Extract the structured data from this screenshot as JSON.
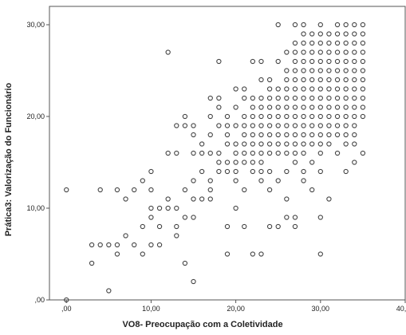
{
  "chart_data": {
    "type": "scatter",
    "title": "",
    "xlabel": "VO8- Preocupação com a Coletividade",
    "ylabel": "Prática3: Valorização do Funcionário",
    "xlim": [
      -2,
      40
    ],
    "ylim": [
      0,
      32
    ],
    "x_ticks": [
      0,
      10,
      20,
      30,
      40
    ],
    "x_tick_labels": [
      ",00",
      "10,00",
      "20,00",
      "30,00",
      "40,00"
    ],
    "y_ticks": [
      0,
      10,
      20,
      30
    ],
    "y_tick_labels": [
      ",00",
      "10,00",
      "20,00",
      "30,00"
    ],
    "grid": false,
    "legend": "none",
    "marker": "open-circle",
    "colors": {
      "marker_stroke": "#444444",
      "plot_background": "#ffffff",
      "axis": "#555555"
    },
    "points": [
      [
        0,
        0
      ],
      [
        0,
        12
      ],
      [
        3,
        6
      ],
      [
        3,
        4
      ],
      [
        4,
        6
      ],
      [
        4,
        12
      ],
      [
        5,
        1
      ],
      [
        5,
        6
      ],
      [
        6,
        5
      ],
      [
        6,
        6
      ],
      [
        6,
        12
      ],
      [
        7,
        11
      ],
      [
        7,
        7
      ],
      [
        8,
        6
      ],
      [
        8,
        12
      ],
      [
        9,
        5
      ],
      [
        9,
        8
      ],
      [
        9,
        13
      ],
      [
        10,
        6
      ],
      [
        10,
        10
      ],
      [
        10,
        9
      ],
      [
        10,
        12
      ],
      [
        10,
        14
      ],
      [
        11,
        10
      ],
      [
        11,
        8
      ],
      [
        11,
        6
      ],
      [
        12,
        11
      ],
      [
        12,
        10
      ],
      [
        12,
        27
      ],
      [
        12,
        16
      ],
      [
        13,
        7
      ],
      [
        13,
        8
      ],
      [
        13,
        10
      ],
      [
        13,
        16
      ],
      [
        13,
        19
      ],
      [
        14,
        9
      ],
      [
        14,
        4
      ],
      [
        14,
        12
      ],
      [
        14,
        19
      ],
      [
        14,
        20
      ],
      [
        15,
        2
      ],
      [
        15,
        9
      ],
      [
        15,
        11
      ],
      [
        15,
        13
      ],
      [
        15,
        16
      ],
      [
        15,
        18
      ],
      [
        15,
        19
      ],
      [
        16,
        11
      ],
      [
        16,
        14
      ],
      [
        16,
        16
      ],
      [
        16,
        17
      ],
      [
        17,
        11
      ],
      [
        17,
        12
      ],
      [
        17,
        13
      ],
      [
        17,
        16
      ],
      [
        17,
        18
      ],
      [
        17,
        20
      ],
      [
        17,
        22
      ],
      [
        18,
        14
      ],
      [
        18,
        15
      ],
      [
        18,
        16
      ],
      [
        18,
        19
      ],
      [
        18,
        21
      ],
      [
        18,
        22
      ],
      [
        18,
        26
      ],
      [
        19,
        5
      ],
      [
        19,
        8
      ],
      [
        19,
        14
      ],
      [
        19,
        15
      ],
      [
        19,
        17
      ],
      [
        19,
        18
      ],
      [
        19,
        19
      ],
      [
        19,
        20
      ],
      [
        20,
        10
      ],
      [
        20,
        13
      ],
      [
        20,
        14
      ],
      [
        20,
        15
      ],
      [
        20,
        16
      ],
      [
        20,
        17
      ],
      [
        20,
        19
      ],
      [
        20,
        21
      ],
      [
        20,
        23
      ],
      [
        21,
        8
      ],
      [
        21,
        12
      ],
      [
        21,
        15
      ],
      [
        21,
        16
      ],
      [
        21,
        17
      ],
      [
        21,
        18
      ],
      [
        21,
        19
      ],
      [
        21,
        20
      ],
      [
        21,
        22
      ],
      [
        21,
        23
      ],
      [
        22,
        5
      ],
      [
        22,
        14
      ],
      [
        22,
        15
      ],
      [
        22,
        16
      ],
      [
        22,
        17
      ],
      [
        22,
        18
      ],
      [
        22,
        19
      ],
      [
        22,
        20
      ],
      [
        22,
        21
      ],
      [
        22,
        22
      ],
      [
        22,
        26
      ],
      [
        23,
        5
      ],
      [
        23,
        13
      ],
      [
        23,
        14
      ],
      [
        23,
        15
      ],
      [
        23,
        16
      ],
      [
        23,
        17
      ],
      [
        23,
        18
      ],
      [
        23,
        19
      ],
      [
        23,
        20
      ],
      [
        23,
        21
      ],
      [
        23,
        22
      ],
      [
        23,
        24
      ],
      [
        23,
        26
      ],
      [
        24,
        8
      ],
      [
        24,
        12
      ],
      [
        24,
        14
      ],
      [
        24,
        16
      ],
      [
        24,
        17
      ],
      [
        24,
        18
      ],
      [
        24,
        19
      ],
      [
        24,
        20
      ],
      [
        24,
        21
      ],
      [
        24,
        22
      ],
      [
        24,
        23
      ],
      [
        24,
        24
      ],
      [
        25,
        8
      ],
      [
        25,
        13
      ],
      [
        25,
        16
      ],
      [
        25,
        17
      ],
      [
        25,
        18
      ],
      [
        25,
        19
      ],
      [
        25,
        20
      ],
      [
        25,
        21
      ],
      [
        25,
        22
      ],
      [
        25,
        23
      ],
      [
        25,
        26
      ],
      [
        25,
        30
      ],
      [
        26,
        9
      ],
      [
        26,
        11
      ],
      [
        26,
        14
      ],
      [
        26,
        16
      ],
      [
        26,
        17
      ],
      [
        26,
        18
      ],
      [
        26,
        19
      ],
      [
        26,
        20
      ],
      [
        26,
        21
      ],
      [
        26,
        22
      ],
      [
        26,
        23
      ],
      [
        26,
        24
      ],
      [
        26,
        25
      ],
      [
        26,
        27
      ],
      [
        27,
        8
      ],
      [
        27,
        9
      ],
      [
        27,
        15
      ],
      [
        27,
        16
      ],
      [
        27,
        17
      ],
      [
        27,
        18
      ],
      [
        27,
        19
      ],
      [
        27,
        20
      ],
      [
        27,
        21
      ],
      [
        27,
        22
      ],
      [
        27,
        23
      ],
      [
        27,
        24
      ],
      [
        27,
        25
      ],
      [
        27,
        26
      ],
      [
        27,
        27
      ],
      [
        27,
        28
      ],
      [
        27,
        30
      ],
      [
        28,
        13
      ],
      [
        28,
        14
      ],
      [
        28,
        16
      ],
      [
        28,
        17
      ],
      [
        28,
        18
      ],
      [
        28,
        19
      ],
      [
        28,
        20
      ],
      [
        28,
        21
      ],
      [
        28,
        22
      ],
      [
        28,
        23
      ],
      [
        28,
        24
      ],
      [
        28,
        25
      ],
      [
        28,
        26
      ],
      [
        28,
        27
      ],
      [
        28,
        28
      ],
      [
        28,
        29
      ],
      [
        28,
        30
      ],
      [
        29,
        12
      ],
      [
        29,
        15
      ],
      [
        29,
        17
      ],
      [
        29,
        18
      ],
      [
        29,
        19
      ],
      [
        29,
        20
      ],
      [
        29,
        21
      ],
      [
        29,
        22
      ],
      [
        29,
        23
      ],
      [
        29,
        24
      ],
      [
        29,
        25
      ],
      [
        29,
        26
      ],
      [
        29,
        27
      ],
      [
        29,
        28
      ],
      [
        29,
        29
      ],
      [
        30,
        5
      ],
      [
        30,
        9
      ],
      [
        30,
        14
      ],
      [
        30,
        16
      ],
      [
        30,
        17
      ],
      [
        30,
        18
      ],
      [
        30,
        19
      ],
      [
        30,
        20
      ],
      [
        30,
        21
      ],
      [
        30,
        22
      ],
      [
        30,
        23
      ],
      [
        30,
        24
      ],
      [
        30,
        25
      ],
      [
        30,
        26
      ],
      [
        30,
        27
      ],
      [
        30,
        28
      ],
      [
        30,
        29
      ],
      [
        30,
        30
      ],
      [
        31,
        11
      ],
      [
        31,
        17
      ],
      [
        31,
        18
      ],
      [
        31,
        19
      ],
      [
        31,
        20
      ],
      [
        31,
        21
      ],
      [
        31,
        22
      ],
      [
        31,
        23
      ],
      [
        31,
        24
      ],
      [
        31,
        25
      ],
      [
        31,
        26
      ],
      [
        31,
        27
      ],
      [
        31,
        28
      ],
      [
        31,
        29
      ],
      [
        32,
        16
      ],
      [
        32,
        18
      ],
      [
        32,
        19
      ],
      [
        32,
        20
      ],
      [
        32,
        21
      ],
      [
        32,
        22
      ],
      [
        32,
        23
      ],
      [
        32,
        24
      ],
      [
        32,
        25
      ],
      [
        32,
        26
      ],
      [
        32,
        27
      ],
      [
        32,
        28
      ],
      [
        32,
        29
      ],
      [
        32,
        30
      ],
      [
        33,
        14
      ],
      [
        33,
        17
      ],
      [
        33,
        18
      ],
      [
        33,
        19
      ],
      [
        33,
        20
      ],
      [
        33,
        21
      ],
      [
        33,
        22
      ],
      [
        33,
        23
      ],
      [
        33,
        24
      ],
      [
        33,
        25
      ],
      [
        33,
        26
      ],
      [
        33,
        27
      ],
      [
        33,
        28
      ],
      [
        33,
        29
      ],
      [
        33,
        30
      ],
      [
        34,
        15
      ],
      [
        34,
        17
      ],
      [
        34,
        18
      ],
      [
        34,
        19
      ],
      [
        34,
        20
      ],
      [
        34,
        21
      ],
      [
        34,
        22
      ],
      [
        34,
        23
      ],
      [
        34,
        24
      ],
      [
        34,
        25
      ],
      [
        34,
        26
      ],
      [
        34,
        27
      ],
      [
        34,
        28
      ],
      [
        34,
        29
      ],
      [
        34,
        30
      ],
      [
        35,
        16
      ],
      [
        35,
        20
      ],
      [
        35,
        21
      ],
      [
        35,
        22
      ],
      [
        35,
        23
      ],
      [
        35,
        24
      ],
      [
        35,
        25
      ],
      [
        35,
        26
      ],
      [
        35,
        27
      ],
      [
        35,
        28
      ],
      [
        35,
        29
      ],
      [
        35,
        30
      ]
    ]
  }
}
